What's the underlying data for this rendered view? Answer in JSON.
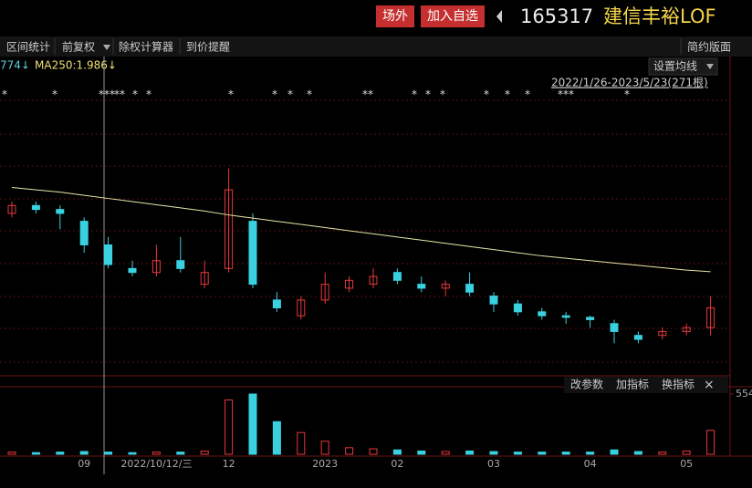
{
  "header": {
    "buttons": [
      "场外",
      "加入自选"
    ],
    "code": "165317",
    "name": "建信丰裕LOF"
  },
  "toolbar": {
    "items": [
      "区间统计",
      "前复权",
      "除权计算器",
      "到价提醒"
    ],
    "right": "简约版面"
  },
  "ma_setting": "设置均线",
  "range": "2022/1/26-2023/5/23(271根)",
  "indicator_buttons": [
    "改参数",
    "加指标",
    "换指标"
  ],
  "chart_data": {
    "type": "candlestick",
    "legend": [
      "774↓",
      "MA250:1.986↓"
    ],
    "categories": [
      null,
      null,
      null,
      "09",
      null,
      null,
      "2022/10/12/三",
      null,
      null,
      "12",
      null,
      null,
      null,
      "2023",
      null,
      null,
      "02",
      null,
      null,
      null,
      "03",
      null,
      null,
      null,
      "04",
      null,
      null,
      null,
      "05",
      null
    ],
    "open": [
      2.06,
      2.07,
      2.065,
      2.05,
      2.02,
      1.99,
      1.985,
      2.0,
      1.97,
      1.99,
      2.05,
      1.95,
      1.93,
      1.95,
      1.965,
      1.97,
      1.985,
      1.97,
      1.965,
      1.97,
      1.955,
      1.945,
      1.935,
      1.93,
      1.928,
      1.92,
      1.905,
      1.905,
      1.91,
      1.915
    ],
    "close": [
      2.07,
      2.065,
      2.06,
      2.02,
      1.995,
      1.985,
      2.0,
      1.99,
      1.985,
      2.09,
      1.97,
      1.94,
      1.95,
      1.97,
      1.975,
      1.98,
      1.975,
      1.965,
      1.97,
      1.96,
      1.945,
      1.935,
      1.93,
      1.928,
      1.925,
      1.91,
      1.9,
      1.91,
      1.915,
      1.94
    ],
    "high": [
      2.075,
      2.075,
      2.07,
      2.055,
      2.03,
      2.0,
      2.02,
      2.03,
      2.0,
      2.117,
      2.06,
      1.96,
      1.955,
      1.985,
      1.98,
      1.99,
      1.99,
      1.98,
      1.975,
      1.985,
      1.96,
      1.95,
      1.94,
      1.935,
      1.93,
      1.925,
      1.91,
      1.915,
      1.92,
      1.955
    ],
    "low": [
      2.055,
      2.06,
      2.04,
      2.01,
      1.99,
      1.98,
      1.98,
      1.985,
      1.965,
      1.985,
      1.965,
      1.935,
      1.925,
      1.945,
      1.96,
      1.965,
      1.97,
      1.96,
      1.955,
      1.955,
      1.935,
      1.93,
      1.925,
      1.92,
      1.915,
      1.895,
      1.895,
      1.9,
      1.905,
      1.905
    ],
    "ma": {
      "color": "#e6e6a8",
      "values": [
        2.093,
        2.09,
        2.087,
        2.083,
        2.079,
        2.075,
        2.071,
        2.067,
        2.063,
        2.058,
        2.054,
        2.05,
        2.046,
        2.042,
        2.038,
        2.034,
        2.03,
        2.026,
        2.022,
        2.018,
        2.014,
        2.01,
        2.006,
        2.003,
        2.0,
        1.997,
        1.994,
        1.991,
        1.988,
        1.986
      ]
    },
    "ylim": [
      1.856,
      2.25
    ],
    "up_color": "#e8383d",
    "down_color": "#39d1e0",
    "volume": [
      20,
      15,
      20,
      25,
      20,
      15,
      20,
      20,
      30,
      500,
      554,
      300,
      200,
      120,
      60,
      50,
      40,
      30,
      25,
      30,
      25,
      20,
      20,
      20,
      20,
      40,
      25,
      20,
      30,
      220
    ],
    "volume_ylim": [
      0,
      554
    ],
    "volume_yticks": [
      554
    ]
  }
}
